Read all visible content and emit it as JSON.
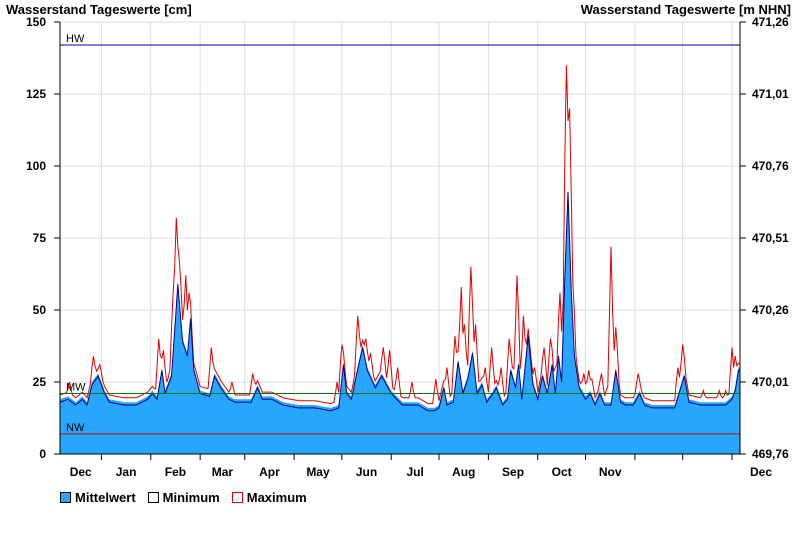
{
  "chart_data": {
    "type": "area",
    "title_left": "Wasserstand Tageswerte [cm]",
    "title_right": "Wasserstand Tageswerte [m NHN]",
    "y_range": [
      0,
      150
    ],
    "y_ticks": [
      0,
      25,
      50,
      75,
      100,
      125,
      150
    ],
    "y2_ticks": [
      "469,76",
      "470,01",
      "470,26",
      "470,51",
      "470,76",
      "471,01",
      "471,26"
    ],
    "x_tick_labels": [
      "Dec",
      "Jan",
      "Feb",
      "Mar",
      "Apr",
      "May",
      "Jun",
      "Jul",
      "Aug",
      "Sep",
      "Oct",
      "Nov",
      "Dec"
    ],
    "grid": true,
    "legend_position": "bottom-left",
    "reference_lines": [
      {
        "label": "HW",
        "value": 142,
        "color": "#0000aa"
      },
      {
        "label": "MW",
        "value": 21,
        "color": "#007700"
      },
      {
        "label": "NW",
        "value": 7,
        "color": "#cc0000"
      }
    ],
    "series": [
      {
        "name": "Mittelwert",
        "color": "#27a6ff"
      },
      {
        "name": "Minimum",
        "color": "#000080"
      },
      {
        "name": "Maximum",
        "color": "#e00000"
      }
    ],
    "mean_keypoints": [
      [
        0,
        19
      ],
      [
        5,
        20
      ],
      [
        10,
        18
      ],
      [
        14,
        20
      ],
      [
        17,
        18
      ],
      [
        20,
        25
      ],
      [
        24,
        28
      ],
      [
        28,
        22
      ],
      [
        31,
        19
      ],
      [
        40,
        18
      ],
      [
        48,
        18
      ],
      [
        55,
        20
      ],
      [
        58,
        22
      ],
      [
        61,
        20
      ],
      [
        64,
        30
      ],
      [
        66,
        22
      ],
      [
        70,
        28
      ],
      [
        74,
        60
      ],
      [
        77,
        40
      ],
      [
        80,
        35
      ],
      [
        82,
        48
      ],
      [
        84,
        30
      ],
      [
        88,
        22
      ],
      [
        94,
        21
      ],
      [
        97,
        28
      ],
      [
        101,
        24
      ],
      [
        106,
        20
      ],
      [
        110,
        19
      ],
      [
        120,
        19
      ],
      [
        124,
        24
      ],
      [
        127,
        20
      ],
      [
        133,
        20
      ],
      [
        140,
        18
      ],
      [
        150,
        17
      ],
      [
        160,
        17
      ],
      [
        170,
        16
      ],
      [
        175,
        17
      ],
      [
        178,
        32
      ],
      [
        180,
        22
      ],
      [
        183,
        20
      ],
      [
        186,
        28
      ],
      [
        190,
        38
      ],
      [
        193,
        30
      ],
      [
        198,
        24
      ],
      [
        202,
        28
      ],
      [
        205,
        25
      ],
      [
        208,
        22
      ],
      [
        215,
        18
      ],
      [
        225,
        18
      ],
      [
        231,
        16
      ],
      [
        235,
        16
      ],
      [
        238,
        17
      ],
      [
        241,
        24
      ],
      [
        243,
        18
      ],
      [
        247,
        19
      ],
      [
        250,
        33
      ],
      [
        253,
        22
      ],
      [
        256,
        27
      ],
      [
        259,
        36
      ],
      [
        262,
        22
      ],
      [
        265,
        25
      ],
      [
        268,
        19
      ],
      [
        272,
        22
      ],
      [
        274,
        24
      ],
      [
        278,
        18
      ],
      [
        281,
        20
      ],
      [
        283,
        30
      ],
      [
        286,
        24
      ],
      [
        288,
        32
      ],
      [
        290,
        20
      ],
      [
        294,
        42
      ],
      [
        297,
        25
      ],
      [
        300,
        20
      ],
      [
        303,
        28
      ],
      [
        306,
        22
      ],
      [
        309,
        32
      ],
      [
        311,
        22
      ],
      [
        313,
        35
      ],
      [
        315,
        26
      ],
      [
        317,
        62
      ],
      [
        319,
        92
      ],
      [
        321,
        58
      ],
      [
        323,
        35
      ],
      [
        326,
        24
      ],
      [
        330,
        20
      ],
      [
        333,
        22
      ],
      [
        336,
        18
      ],
      [
        339,
        22
      ],
      [
        342,
        18
      ],
      [
        346,
        18
      ],
      [
        349,
        30
      ],
      [
        352,
        19
      ],
      [
        355,
        18
      ],
      [
        360,
        18
      ],
      [
        364,
        22
      ],
      [
        367,
        18
      ],
      [
        372,
        17
      ],
      [
        380,
        17
      ],
      [
        386,
        17
      ],
      [
        392,
        28
      ],
      [
        395,
        19
      ],
      [
        402,
        18
      ],
      [
        412,
        18
      ],
      [
        418,
        18
      ],
      [
        422,
        20
      ],
      [
        424,
        23
      ],
      [
        426,
        30
      ]
    ],
    "min_offset": -1,
    "max_peaks": [
      [
        6,
        25
      ],
      [
        21,
        34
      ],
      [
        25,
        31
      ],
      [
        62,
        40
      ],
      [
        65,
        36
      ],
      [
        71,
        56
      ],
      [
        73,
        82
      ],
      [
        75,
        67
      ],
      [
        78,
        52
      ],
      [
        79,
        62
      ],
      [
        81,
        56
      ],
      [
        95,
        37
      ],
      [
        108,
        25
      ],
      [
        121,
        28
      ],
      [
        174,
        25
      ],
      [
        177,
        38
      ],
      [
        187,
        48
      ],
      [
        192,
        40
      ],
      [
        195,
        35
      ],
      [
        203,
        37
      ],
      [
        207,
        36
      ],
      [
        212,
        30
      ],
      [
        221,
        25
      ],
      [
        236,
        26
      ],
      [
        243,
        30
      ],
      [
        248,
        41
      ],
      [
        252,
        58
      ],
      [
        254,
        45
      ],
      [
        258,
        65
      ],
      [
        261,
        45
      ],
      [
        267,
        30
      ],
      [
        271,
        37
      ],
      [
        277,
        30
      ],
      [
        282,
        40
      ],
      [
        284,
        30
      ],
      [
        287,
        62
      ],
      [
        291,
        48
      ],
      [
        294,
        38
      ],
      [
        298,
        30
      ],
      [
        304,
        37
      ],
      [
        308,
        40
      ],
      [
        311,
        30
      ],
      [
        314,
        56
      ],
      [
        316,
        52
      ],
      [
        318,
        135
      ],
      [
        320,
        120
      ],
      [
        322,
        60
      ],
      [
        329,
        28
      ],
      [
        332,
        29
      ],
      [
        334,
        26
      ],
      [
        340,
        28
      ],
      [
        343,
        22
      ],
      [
        346,
        72
      ],
      [
        349,
        44
      ],
      [
        363,
        28
      ],
      [
        388,
        30
      ],
      [
        391,
        38
      ],
      [
        404,
        22
      ],
      [
        414,
        22
      ],
      [
        418,
        22
      ],
      [
        422,
        37
      ],
      [
        424,
        34
      ]
    ]
  }
}
